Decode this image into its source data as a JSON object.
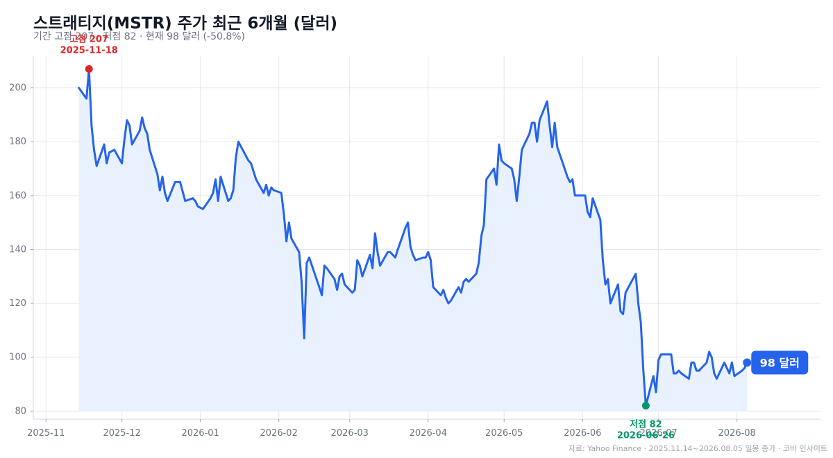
{
  "title": "스트래티지(MSTR) 주가 최근 6개월 (달러)",
  "subtitle": "기간 고점 207 · 저점 82 · 현재 98 달러 (-50.8%)",
  "source": "자료: Yahoo Finance · 2025.11.14~2026.08.05 일봉 종가 · 코바 인사이트",
  "colors": {
    "line": "#2563eb",
    "fill": "#e8f1fd",
    "high": "#dc2626",
    "low": "#059669",
    "grid": "#e5e7eb",
    "badge": "#2563eb"
  },
  "chart_data": {
    "type": "line",
    "ylim": [
      77,
      212
    ],
    "grid": true,
    "x_ticks": [
      "2025-11",
      "2025-12",
      "2026-01",
      "2026-02",
      "2026-03",
      "2026-04",
      "2026-05",
      "2026-06",
      "2026-07",
      "2026-08"
    ],
    "y_ticks": [
      80,
      100,
      120,
      140,
      160,
      180,
      200
    ],
    "annotations": {
      "high": {
        "label": "고점 207",
        "date": "2025-11-18",
        "value": 207
      },
      "low": {
        "label": "저점 82",
        "date": "2026-06-26",
        "value": 82
      },
      "current": {
        "label": "98 달러",
        "date": "2026-08-05",
        "value": 98
      }
    },
    "series": [
      {
        "points": [
          [
            "2025-11-14",
            200
          ],
          [
            "2025-11-17",
            196
          ],
          [
            "2025-11-18",
            207
          ],
          [
            "2025-11-19",
            186
          ],
          [
            "2025-11-20",
            177
          ],
          [
            "2025-11-21",
            171
          ],
          [
            "2025-11-24",
            179
          ],
          [
            "2025-11-25",
            172
          ],
          [
            "2025-11-26",
            176
          ],
          [
            "2025-11-28",
            177
          ],
          [
            "2025-12-01",
            172
          ],
          [
            "2025-12-02",
            181
          ],
          [
            "2025-12-03",
            188
          ],
          [
            "2025-12-04",
            186
          ],
          [
            "2025-12-05",
            179
          ],
          [
            "2025-12-08",
            184
          ],
          [
            "2025-12-09",
            189
          ],
          [
            "2025-12-10",
            185
          ],
          [
            "2025-12-11",
            183
          ],
          [
            "2025-12-12",
            177
          ],
          [
            "2025-12-15",
            168
          ],
          [
            "2025-12-16",
            162
          ],
          [
            "2025-12-17",
            167
          ],
          [
            "2025-12-18",
            161
          ],
          [
            "2025-12-19",
            158
          ],
          [
            "2025-12-22",
            165
          ],
          [
            "2025-12-24",
            165
          ],
          [
            "2025-12-26",
            158
          ],
          [
            "2025-12-29",
            159
          ],
          [
            "2025-12-30",
            158
          ],
          [
            "2025-12-31",
            156
          ],
          [
            "2026-01-02",
            155
          ],
          [
            "2026-01-05",
            159
          ],
          [
            "2026-01-06",
            161
          ],
          [
            "2026-01-07",
            166
          ],
          [
            "2026-01-08",
            158
          ],
          [
            "2026-01-09",
            167
          ],
          [
            "2026-01-12",
            158
          ],
          [
            "2026-01-13",
            159
          ],
          [
            "2026-01-14",
            162
          ],
          [
            "2026-01-15",
            174
          ],
          [
            "2026-01-16",
            180
          ],
          [
            "2026-01-20",
            173
          ],
          [
            "2026-01-21",
            172
          ],
          [
            "2026-01-22",
            169
          ],
          [
            "2026-01-23",
            166
          ],
          [
            "2026-01-26",
            161
          ],
          [
            "2026-01-27",
            164
          ],
          [
            "2026-01-28",
            160
          ],
          [
            "2026-01-29",
            163
          ],
          [
            "2026-01-30",
            162
          ],
          [
            "2026-02-02",
            161
          ],
          [
            "2026-02-03",
            153
          ],
          [
            "2026-02-04",
            143
          ],
          [
            "2026-02-05",
            150
          ],
          [
            "2026-02-06",
            144
          ],
          [
            "2026-02-09",
            139
          ],
          [
            "2026-02-10",
            128
          ],
          [
            "2026-02-11",
            107
          ],
          [
            "2026-02-12",
            135
          ],
          [
            "2026-02-13",
            137
          ],
          [
            "2026-02-17",
            126
          ],
          [
            "2026-02-18",
            123
          ],
          [
            "2026-02-19",
            134
          ],
          [
            "2026-02-20",
            133
          ],
          [
            "2026-02-23",
            129
          ],
          [
            "2026-02-24",
            125
          ],
          [
            "2026-02-25",
            130
          ],
          [
            "2026-02-26",
            131
          ],
          [
            "2026-02-27",
            127
          ],
          [
            "2026-03-02",
            124
          ],
          [
            "2026-03-03",
            125
          ],
          [
            "2026-03-04",
            136
          ],
          [
            "2026-03-05",
            134
          ],
          [
            "2026-03-06",
            130
          ],
          [
            "2026-03-09",
            138
          ],
          [
            "2026-03-10",
            133
          ],
          [
            "2026-03-11",
            146
          ],
          [
            "2026-03-12",
            139
          ],
          [
            "2026-03-13",
            134
          ],
          [
            "2026-03-16",
            139
          ],
          [
            "2026-03-17",
            139
          ],
          [
            "2026-03-18",
            138
          ],
          [
            "2026-03-19",
            137
          ],
          [
            "2026-03-20",
            140
          ],
          [
            "2026-03-23",
            148
          ],
          [
            "2026-03-24",
            150
          ],
          [
            "2026-03-25",
            141
          ],
          [
            "2026-03-26",
            138
          ],
          [
            "2026-03-27",
            136
          ],
          [
            "2026-03-30",
            137
          ],
          [
            "2026-03-31",
            137
          ],
          [
            "2026-04-01",
            139
          ],
          [
            "2026-04-02",
            136
          ],
          [
            "2026-04-03",
            126
          ],
          [
            "2026-04-06",
            123
          ],
          [
            "2026-04-07",
            125
          ],
          [
            "2026-04-08",
            122
          ],
          [
            "2026-04-09",
            120
          ],
          [
            "2026-04-10",
            121
          ],
          [
            "2026-04-13",
            126
          ],
          [
            "2026-04-14",
            124
          ],
          [
            "2026-04-15",
            128
          ],
          [
            "2026-04-16",
            129
          ],
          [
            "2026-04-17",
            128
          ],
          [
            "2026-04-20",
            131
          ],
          [
            "2026-04-21",
            135
          ],
          [
            "2026-04-22",
            145
          ],
          [
            "2026-04-23",
            149
          ],
          [
            "2026-04-24",
            166
          ],
          [
            "2026-04-27",
            170
          ],
          [
            "2026-04-28",
            164
          ],
          [
            "2026-04-29",
            179
          ],
          [
            "2026-04-30",
            173
          ],
          [
            "2026-05-01",
            172
          ],
          [
            "2026-05-04",
            170
          ],
          [
            "2026-05-05",
            166
          ],
          [
            "2026-05-06",
            158
          ],
          [
            "2026-05-07",
            167
          ],
          [
            "2026-05-08",
            177
          ],
          [
            "2026-05-11",
            183
          ],
          [
            "2026-05-12",
            187
          ],
          [
            "2026-05-13",
            187
          ],
          [
            "2026-05-14",
            180
          ],
          [
            "2026-05-15",
            188
          ],
          [
            "2026-05-18",
            195
          ],
          [
            "2026-05-19",
            186
          ],
          [
            "2026-05-20",
            178
          ],
          [
            "2026-05-21",
            187
          ],
          [
            "2026-05-22",
            178
          ],
          [
            "2026-05-26",
            167
          ],
          [
            "2026-05-27",
            165
          ],
          [
            "2026-05-28",
            166
          ],
          [
            "2026-05-29",
            160
          ],
          [
            "2026-06-01",
            160
          ],
          [
            "2026-06-02",
            160
          ],
          [
            "2026-06-03",
            154
          ],
          [
            "2026-06-04",
            152
          ],
          [
            "2026-06-05",
            159
          ],
          [
            "2026-06-08",
            151
          ],
          [
            "2026-06-09",
            136
          ],
          [
            "2026-06-10",
            127
          ],
          [
            "2026-06-11",
            129
          ],
          [
            "2026-06-12",
            120
          ],
          [
            "2026-06-15",
            127
          ],
          [
            "2026-06-16",
            117
          ],
          [
            "2026-06-17",
            116
          ],
          [
            "2026-06-18",
            124
          ],
          [
            "2026-06-22",
            131
          ],
          [
            "2026-06-23",
            120
          ],
          [
            "2026-06-24",
            113
          ],
          [
            "2026-06-25",
            95
          ],
          [
            "2026-06-26",
            82
          ],
          [
            "2026-06-29",
            93
          ],
          [
            "2026-06-30",
            87
          ],
          [
            "2026-07-01",
            99
          ],
          [
            "2026-07-02",
            101
          ],
          [
            "2026-07-06",
            101
          ],
          [
            "2026-07-07",
            94
          ],
          [
            "2026-07-08",
            94
          ],
          [
            "2026-07-09",
            95
          ],
          [
            "2026-07-10",
            94
          ],
          [
            "2026-07-13",
            92
          ],
          [
            "2026-07-14",
            98
          ],
          [
            "2026-07-15",
            98
          ],
          [
            "2026-07-16",
            95
          ],
          [
            "2026-07-17",
            95
          ],
          [
            "2026-07-20",
            98
          ],
          [
            "2026-07-21",
            102
          ],
          [
            "2026-07-22",
            100
          ],
          [
            "2026-07-23",
            94
          ],
          [
            "2026-07-24",
            92
          ],
          [
            "2026-07-27",
            98
          ],
          [
            "2026-07-28",
            96
          ],
          [
            "2026-07-29",
            94
          ],
          [
            "2026-07-30",
            98
          ],
          [
            "2026-07-31",
            93
          ],
          [
            "2026-08-03",
            95
          ],
          [
            "2026-08-04",
            96
          ],
          [
            "2026-08-05",
            98
          ]
        ]
      }
    ]
  }
}
